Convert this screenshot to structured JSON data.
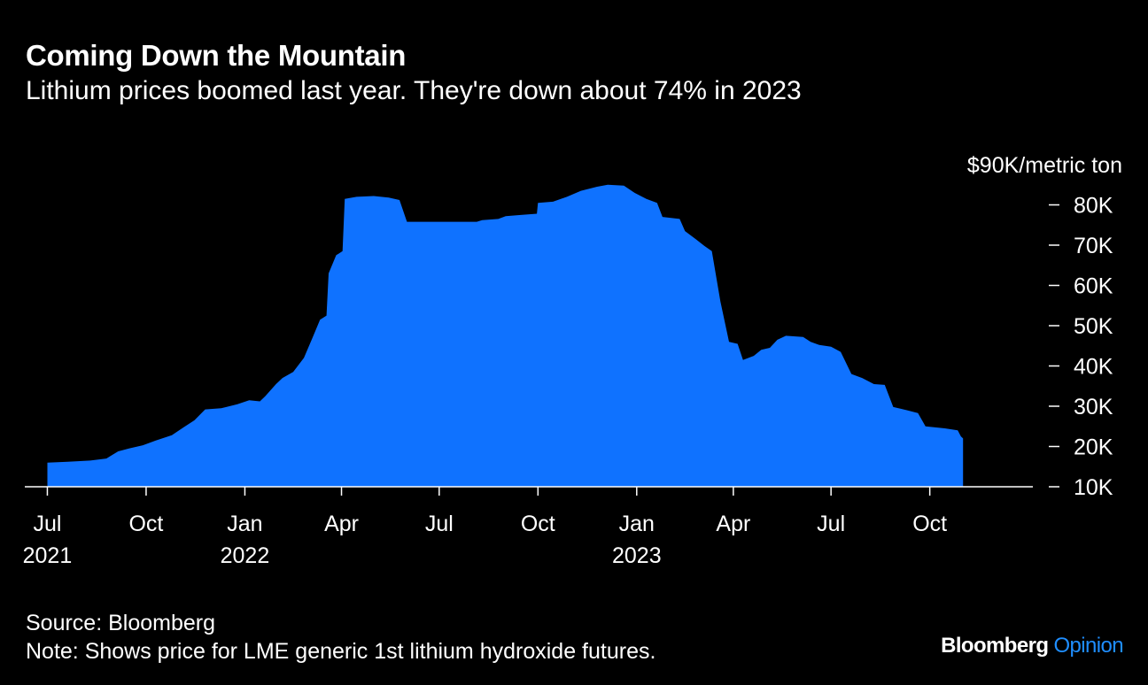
{
  "title": "Coming Down the Mountain",
  "subtitle": "Lithium prices boomed last year. They're down about 74% in 2023",
  "source": "Source: Bloomberg",
  "note": "Note: Shows price for LME generic 1st lithium hydroxide futures.",
  "brand": {
    "name": "Bloomberg",
    "product": "Opinion"
  },
  "colors": {
    "background": "#000000",
    "area": "#0f72ff",
    "text": "#ffffff",
    "brand_accent": "#1f8eff"
  },
  "chart_data": {
    "type": "area",
    "series_name": "LME generic 1st lithium hydroxide futures",
    "ylabel": "$90K/metric ton",
    "y_axis_position": "right",
    "ylim": [
      10000,
      90000
    ],
    "y_ticks": [
      {
        "value": 10000,
        "label": "10K"
      },
      {
        "value": 20000,
        "label": "20K"
      },
      {
        "value": 30000,
        "label": "30K"
      },
      {
        "value": 40000,
        "label": "40K"
      },
      {
        "value": 50000,
        "label": "50K"
      },
      {
        "value": 60000,
        "label": "60K"
      },
      {
        "value": 70000,
        "label": "70K"
      },
      {
        "value": 80000,
        "label": "80K"
      },
      {
        "value": 90000,
        "label": "$90K/metric ton"
      }
    ],
    "xlim": [
      "2021-06-10",
      "2024-01-05"
    ],
    "x_ticks": [
      {
        "date": "2021-07-01",
        "label": "Jul",
        "year": "2021"
      },
      {
        "date": "2021-10-01",
        "label": "Oct",
        "year": ""
      },
      {
        "date": "2022-01-01",
        "label": "Jan",
        "year": "2022"
      },
      {
        "date": "2022-04-01",
        "label": "Apr",
        "year": ""
      },
      {
        "date": "2022-07-01",
        "label": "Jul",
        "year": ""
      },
      {
        "date": "2022-10-01",
        "label": "Oct",
        "year": ""
      },
      {
        "date": "2023-01-01",
        "label": "Jan",
        "year": "2023"
      },
      {
        "date": "2023-04-01",
        "label": "Apr",
        "year": ""
      },
      {
        "date": "2023-07-01",
        "label": "Jul",
        "year": ""
      },
      {
        "date": "2023-10-01",
        "label": "Oct",
        "year": ""
      }
    ],
    "grid": false,
    "legend": "none",
    "points": [
      [
        "2021-07-01",
        16000
      ],
      [
        "2021-07-20",
        16200
      ],
      [
        "2021-08-10",
        16500
      ],
      [
        "2021-08-25",
        17000
      ],
      [
        "2021-09-05",
        18800
      ],
      [
        "2021-09-15",
        19500
      ],
      [
        "2021-09-28",
        20300
      ],
      [
        "2021-10-10",
        21500
      ],
      [
        "2021-10-25",
        22800
      ],
      [
        "2021-11-05",
        24800
      ],
      [
        "2021-11-15",
        26500
      ],
      [
        "2021-11-25",
        29200
      ],
      [
        "2021-12-10",
        29500
      ],
      [
        "2021-12-25",
        30500
      ],
      [
        "2022-01-05",
        31500
      ],
      [
        "2022-01-15",
        31200
      ],
      [
        "2022-01-20",
        32500
      ],
      [
        "2022-01-30",
        35500
      ],
      [
        "2022-02-05",
        37000
      ],
      [
        "2022-02-15",
        38500
      ],
      [
        "2022-02-25",
        42000
      ],
      [
        "2022-03-05",
        47000
      ],
      [
        "2022-03-12",
        51500
      ],
      [
        "2022-03-18",
        52500
      ],
      [
        "2022-03-20",
        63000
      ],
      [
        "2022-03-27",
        67500
      ],
      [
        "2022-04-02",
        68500
      ],
      [
        "2022-04-04",
        81500
      ],
      [
        "2022-04-15",
        82000
      ],
      [
        "2022-05-01",
        82200
      ],
      [
        "2022-05-15",
        81800
      ],
      [
        "2022-05-25",
        81200
      ],
      [
        "2022-06-01",
        75800
      ],
      [
        "2022-07-01",
        75800
      ],
      [
        "2022-08-05",
        75800
      ],
      [
        "2022-08-10",
        76200
      ],
      [
        "2022-08-25",
        76500
      ],
      [
        "2022-09-01",
        77200
      ],
      [
        "2022-09-15",
        77500
      ],
      [
        "2022-09-30",
        77800
      ],
      [
        "2022-10-01",
        80500
      ],
      [
        "2022-10-15",
        80800
      ],
      [
        "2022-10-28",
        82000
      ],
      [
        "2022-11-10",
        83500
      ],
      [
        "2022-11-25",
        84500
      ],
      [
        "2022-12-05",
        85000
      ],
      [
        "2022-12-20",
        84800
      ],
      [
        "2022-12-30",
        83000
      ],
      [
        "2023-01-10",
        81500
      ],
      [
        "2023-01-20",
        80500
      ],
      [
        "2023-01-25",
        77000
      ],
      [
        "2023-02-10",
        76500
      ],
      [
        "2023-02-15",
        73500
      ],
      [
        "2023-02-25",
        71500
      ],
      [
        "2023-03-05",
        69800
      ],
      [
        "2023-03-12",
        68500
      ],
      [
        "2023-03-20",
        56000
      ],
      [
        "2023-03-28",
        46000
      ],
      [
        "2023-04-05",
        45500
      ],
      [
        "2023-04-10",
        41500
      ],
      [
        "2023-04-20",
        42500
      ],
      [
        "2023-04-27",
        44000
      ],
      [
        "2023-05-05",
        44500
      ],
      [
        "2023-05-12",
        46500
      ],
      [
        "2023-05-20",
        47500
      ],
      [
        "2023-06-05",
        47200
      ],
      [
        "2023-06-12",
        46000
      ],
      [
        "2023-06-20",
        45200
      ],
      [
        "2023-07-01",
        44800
      ],
      [
        "2023-07-10",
        43500
      ],
      [
        "2023-07-20",
        38000
      ],
      [
        "2023-07-30",
        37000
      ],
      [
        "2023-08-10",
        35500
      ],
      [
        "2023-08-20",
        35300
      ],
      [
        "2023-08-28",
        29800
      ],
      [
        "2023-09-10",
        29000
      ],
      [
        "2023-09-20",
        28300
      ],
      [
        "2023-09-27",
        25000
      ],
      [
        "2023-10-15",
        24500
      ],
      [
        "2023-10-27",
        24000
      ],
      [
        "2023-10-30",
        22500
      ],
      [
        "2023-11-01",
        22000
      ]
    ]
  }
}
